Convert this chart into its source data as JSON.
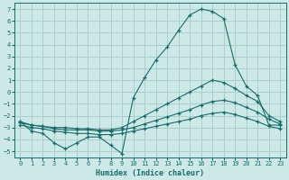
{
  "xlabel": "Humidex (Indice chaleur)",
  "background_color": "#cce9e8",
  "grid_color": "#aacfce",
  "line_color": "#1a6b6a",
  "xlim": [
    -0.5,
    23.5
  ],
  "ylim": [
    -5.5,
    7.5
  ],
  "yticks": [
    -5,
    -4,
    -3,
    -2,
    -1,
    0,
    1,
    2,
    3,
    4,
    5,
    6,
    7
  ],
  "xticks": [
    0,
    1,
    2,
    3,
    4,
    5,
    6,
    7,
    8,
    9,
    10,
    11,
    12,
    13,
    14,
    15,
    16,
    17,
    18,
    19,
    20,
    21,
    22,
    23
  ],
  "line1_x": [
    0,
    1,
    2,
    3,
    4,
    5,
    6,
    7,
    8,
    9,
    10,
    11,
    12,
    13,
    14,
    15,
    16,
    17,
    18,
    19,
    20,
    21,
    22,
    23
  ],
  "line1_y": [
    -2.5,
    -3.3,
    -3.5,
    -4.3,
    -4.8,
    -4.3,
    -3.8,
    -3.8,
    -4.5,
    -5.2,
    -0.5,
    1.2,
    2.7,
    3.8,
    5.2,
    6.5,
    7.0,
    6.8,
    6.2,
    2.3,
    0.5,
    -0.3,
    -2.8,
    -2.8
  ],
  "line2_x": [
    0,
    1,
    2,
    3,
    4,
    5,
    6,
    7,
    8,
    9,
    10,
    11,
    12,
    13,
    14,
    15,
    16,
    17,
    18,
    19,
    20,
    21,
    22,
    23
  ],
  "line2_y": [
    -2.5,
    -2.8,
    -2.9,
    -3.0,
    -3.0,
    -3.1,
    -3.1,
    -3.2,
    -3.2,
    -3.0,
    -2.5,
    -2.0,
    -1.5,
    -1.0,
    -0.5,
    0.0,
    0.5,
    1.0,
    0.8,
    0.3,
    -0.3,
    -0.8,
    -2.0,
    -2.5
  ],
  "line3_x": [
    0,
    1,
    2,
    3,
    4,
    5,
    6,
    7,
    8,
    9,
    10,
    11,
    12,
    13,
    14,
    15,
    16,
    17,
    18,
    19,
    20,
    21,
    22,
    23
  ],
  "line3_y": [
    -2.6,
    -2.8,
    -2.9,
    -3.1,
    -3.2,
    -3.2,
    -3.2,
    -3.3,
    -3.3,
    -3.2,
    -3.0,
    -2.7,
    -2.4,
    -2.1,
    -1.8,
    -1.5,
    -1.1,
    -0.8,
    -0.7,
    -0.9,
    -1.3,
    -1.7,
    -2.3,
    -2.7
  ],
  "line4_x": [
    0,
    1,
    2,
    3,
    4,
    5,
    6,
    7,
    8,
    9,
    10,
    11,
    12,
    13,
    14,
    15,
    16,
    17,
    18,
    19,
    20,
    21,
    22,
    23
  ],
  "line4_y": [
    -2.8,
    -3.0,
    -3.1,
    -3.3,
    -3.4,
    -3.5,
    -3.5,
    -3.6,
    -3.6,
    -3.5,
    -3.3,
    -3.1,
    -2.9,
    -2.7,
    -2.5,
    -2.3,
    -2.0,
    -1.8,
    -1.7,
    -1.9,
    -2.2,
    -2.5,
    -2.9,
    -3.1
  ]
}
